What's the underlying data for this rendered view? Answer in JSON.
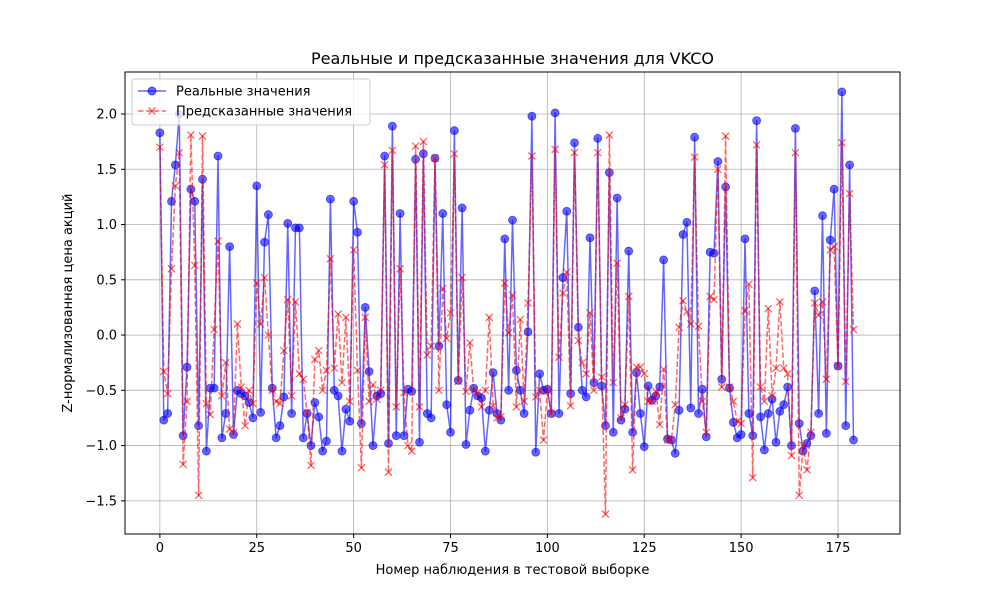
{
  "chart_data": {
    "type": "line",
    "title": "Реальные и предсказанные значения для VKCO",
    "xlabel": "Номер наблюдения в тестовой выборке",
    "ylabel": "Z-нормализованная цена акций",
    "xlim": [
      -9,
      191
    ],
    "ylim": [
      -1.8,
      2.38
    ],
    "xticks": [
      0,
      25,
      50,
      75,
      100,
      125,
      150,
      175
    ],
    "yticks": [
      -1.5,
      -1.0,
      -0.5,
      0.0,
      0.5,
      1.0,
      1.5,
      2.0
    ],
    "xtick_labels": [
      "0",
      "25",
      "50",
      "75",
      "100",
      "125",
      "150",
      "175"
    ],
    "ytick_labels": [
      "−1.5",
      "−1.0",
      "−0.5",
      "0.0",
      "0.5",
      "1.0",
      "1.5",
      "2.0"
    ],
    "grid": true,
    "legend_position": "top-left",
    "series": [
      {
        "name": "Реальные значения",
        "color": "#0000ff",
        "style": "solid",
        "marker": "circle",
        "values": [
          1.83,
          -0.77,
          -0.71,
          1.21,
          1.54,
          2.0,
          -0.91,
          -0.29,
          1.32,
          1.21,
          -0.82,
          1.41,
          -1.05,
          -0.48,
          -0.48,
          1.62,
          -0.93,
          -0.71,
          0.8,
          -0.9,
          -0.5,
          -0.53,
          -0.55,
          -0.61,
          -0.75,
          1.35,
          -0.7,
          0.84,
          1.09,
          -0.48,
          -0.93,
          -0.82,
          -0.56,
          1.01,
          -0.71,
          0.97,
          0.97,
          -0.93,
          -0.71,
          -1.0,
          -0.61,
          -0.74,
          -1.05,
          -0.96,
          1.23,
          -0.5,
          -0.55,
          -1.05,
          -0.67,
          -0.78,
          1.21,
          0.93,
          -0.8,
          0.25,
          -0.33,
          -1.0,
          -0.55,
          -0.53,
          1.62,
          -0.98,
          1.89,
          -0.91,
          1.1,
          -0.91,
          -0.49,
          -0.51,
          1.59,
          -0.97,
          1.64,
          -0.71,
          -0.75,
          1.6,
          -0.1,
          1.1,
          -0.63,
          -0.88,
          1.85,
          -0.41,
          1.15,
          -0.99,
          -0.68,
          -0.48,
          -0.55,
          -0.57,
          -1.05,
          -0.68,
          -0.34,
          -0.71,
          -0.77,
          0.87,
          -0.5,
          1.04,
          -0.32,
          -0.5,
          -0.71,
          0.03,
          1.98,
          -1.06,
          -0.35,
          -0.5,
          -0.49,
          -0.71,
          2.01,
          -0.71,
          0.52,
          1.12,
          -0.53,
          1.74,
          0.07,
          -0.5,
          -0.56,
          0.88,
          -0.43,
          1.78,
          -0.46,
          -0.82,
          1.47,
          -0.88,
          1.24,
          -0.77,
          -0.67,
          0.76,
          -0.88,
          -0.34,
          -0.71,
          -1.01,
          -0.46,
          -0.59,
          -0.55,
          -0.47,
          0.68,
          -0.94,
          -0.95,
          -1.07,
          -0.68,
          0.91,
          1.02,
          -0.66,
          1.79,
          -0.71,
          -0.49,
          -0.92,
          0.75,
          0.74,
          1.57,
          -0.4,
          1.34,
          -0.48,
          -0.79,
          -0.93,
          -0.9,
          0.87,
          -0.71,
          -0.91,
          1.94,
          -0.74,
          -1.04,
          -0.71,
          -0.58,
          -0.97,
          -0.69,
          -0.63,
          -0.47,
          -1.0,
          1.87,
          -0.8,
          -1.05,
          -0.98,
          -0.91,
          0.4,
          -0.71,
          1.08,
          -0.89,
          0.86,
          1.32,
          -0.28,
          2.2,
          -0.82,
          1.54,
          -0.95
        ]
      },
      {
        "name": "Предсказанные значения",
        "color": "#ff0000",
        "style": "dashed",
        "marker": "x",
        "values": [
          1.7,
          -0.33,
          -0.53,
          0.6,
          1.35,
          1.65,
          -1.17,
          -0.6,
          1.81,
          0.63,
          -1.45,
          1.8,
          -0.62,
          -0.72,
          0.05,
          0.85,
          -0.55,
          -0.25,
          -0.85,
          -0.88,
          0.1,
          -0.47,
          -0.82,
          -0.5,
          -0.62,
          0.47,
          0.1,
          0.52,
          0.0,
          -0.5,
          -0.6,
          -0.62,
          -0.14,
          0.32,
          -0.55,
          0.3,
          -0.35,
          -0.4,
          -0.7,
          -1.18,
          -0.22,
          -0.14,
          -0.5,
          -0.32,
          0.69,
          -0.3,
          0.19,
          -0.43,
          0.16,
          -0.6,
          0.77,
          -0.32,
          -1.2,
          0.16,
          -0.6,
          -0.45,
          -0.58,
          -0.5,
          1.54,
          -1.24,
          1.67,
          -0.65,
          0.6,
          -0.52,
          -1.0,
          -1.05,
          1.71,
          -0.65,
          1.75,
          -0.18,
          -0.1,
          1.6,
          -0.5,
          0.42,
          -0.03,
          0.2,
          1.64,
          -0.42,
          0.52,
          -0.51,
          -0.07,
          -0.5,
          -0.52,
          -0.65,
          -0.5,
          0.16,
          -0.64,
          -0.75,
          -0.74,
          0.47,
          0.02,
          0.36,
          -0.65,
          0.14,
          -0.6,
          0.29,
          1.62,
          -0.56,
          -0.5,
          -0.95,
          -0.5,
          -0.71,
          1.68,
          -0.2,
          0.38,
          0.57,
          -0.64,
          1.65,
          -0.05,
          -0.25,
          -0.35,
          0.2,
          -0.5,
          1.65,
          -0.38,
          -1.62,
          1.81,
          -0.43,
          0.65,
          -0.75,
          -0.63,
          0.35,
          -1.22,
          -0.29,
          -0.29,
          -0.35,
          -0.6,
          -0.6,
          -0.51,
          -0.81,
          -0.31,
          -0.95,
          -0.95,
          -0.63,
          0.07,
          0.31,
          0.21,
          0.1,
          1.61,
          0.08,
          -0.6,
          -0.88,
          0.35,
          0.32,
          1.5,
          -0.47,
          1.8,
          -0.47,
          -0.6,
          -0.78,
          -0.8,
          0.22,
          0.46,
          -1.29,
          1.72,
          -0.47,
          -0.6,
          0.24,
          -0.55,
          -0.3,
          0.3,
          -0.3,
          -0.35,
          -1.09,
          1.65,
          -1.45,
          -1.0,
          -1.22,
          -0.88,
          0.29,
          0.18,
          0.3,
          -0.4,
          0.77,
          0.8,
          -0.28,
          1.74,
          -0.42,
          1.28,
          0.05
        ]
      }
    ]
  }
}
